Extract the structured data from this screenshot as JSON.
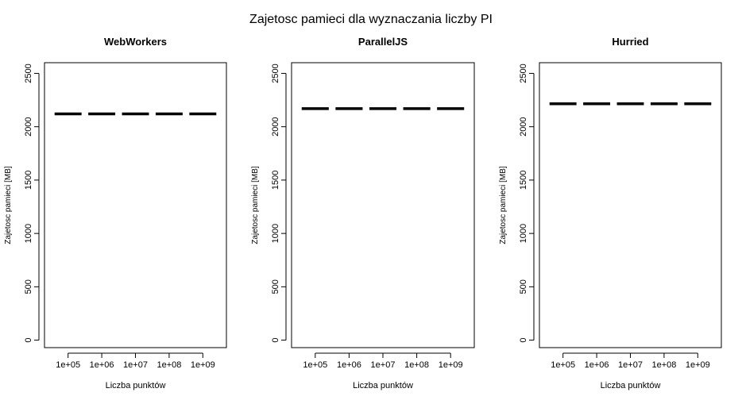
{
  "figure": {
    "title": "Zajetosc pamieci dla wyznaczania liczby PI"
  },
  "chart_data": [
    {
      "type": "boxplot",
      "title": "WebWorkers",
      "xlabel": "Liczba punktów",
      "ylabel": "Zajetosc pamieci [MB]",
      "categories": [
        "1e+05",
        "1e+06",
        "1e+07",
        "1e+08",
        "1e+09"
      ],
      "values": [
        2120,
        2120,
        2120,
        2120,
        2120
      ],
      "ylim": [
        0,
        2500
      ],
      "yticks": [
        "0",
        "500",
        "1000",
        "1500",
        "2000",
        "2500"
      ],
      "grid": false
    },
    {
      "type": "boxplot",
      "title": "ParallelJS",
      "xlabel": "Liczba punktów",
      "ylabel": "Zajetosc pamieci [MB]",
      "categories": [
        "1e+05",
        "1e+06",
        "1e+07",
        "1e+08",
        "1e+09"
      ],
      "values": [
        2170,
        2170,
        2170,
        2170,
        2170
      ],
      "ylim": [
        0,
        2500
      ],
      "yticks": [
        "0",
        "500",
        "1000",
        "1500",
        "2000",
        "2500"
      ],
      "grid": false
    },
    {
      "type": "boxplot",
      "title": "Hurried",
      "xlabel": "Liczba punktów",
      "ylabel": "Zajetosc pamieci [MB]",
      "categories": [
        "1e+05",
        "1e+06",
        "1e+07",
        "1e+08",
        "1e+09"
      ],
      "values": [
        2215,
        2215,
        2215,
        2215,
        2215
      ],
      "ylim": [
        0,
        2500
      ],
      "yticks": [
        "0",
        "500",
        "1000",
        "1500",
        "2000",
        "2500"
      ],
      "grid": false
    }
  ]
}
